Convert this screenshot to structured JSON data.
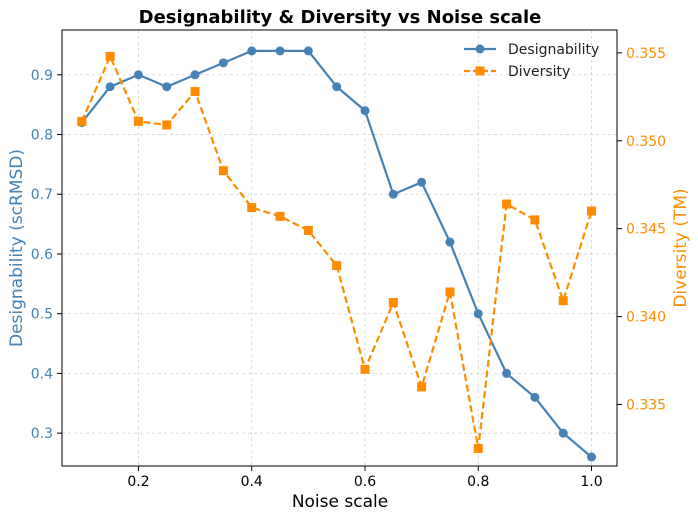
{
  "chart_data": {
    "type": "line",
    "title": "Designability & Diversity vs Noise scale",
    "xlabel": "Noise scale",
    "ylabel_left": "Designability (scRMSD)",
    "ylabel_right": "Diversity (TM)",
    "xlim": [
      0.065,
      1.045
    ],
    "ylim_left": [
      0.245,
      0.975
    ],
    "ylim_right": [
      0.3315,
      0.3563
    ],
    "x_ticks": [
      0.2,
      0.4,
      0.6,
      0.8,
      1.0
    ],
    "x_tick_labels": [
      "0.2",
      "0.4",
      "0.6",
      "0.8",
      "1.0"
    ],
    "y_left_ticks": [
      0.3,
      0.4,
      0.5,
      0.6,
      0.7,
      0.8,
      0.9
    ],
    "y_left_tick_labels": [
      "0.3",
      "0.4",
      "0.5",
      "0.6",
      "0.7",
      "0.8",
      "0.9"
    ],
    "y_right_ticks": [
      0.335,
      0.34,
      0.345,
      0.35,
      0.355
    ],
    "y_right_tick_labels": [
      "0.335",
      "0.340",
      "0.345",
      "0.350",
      "0.355"
    ],
    "grid": true,
    "legend_position": "top-right",
    "x": [
      0.1,
      0.15,
      0.2,
      0.25,
      0.3,
      0.35,
      0.4,
      0.45,
      0.5,
      0.55,
      0.6,
      0.65,
      0.7,
      0.75,
      0.8,
      0.85,
      0.9,
      0.95,
      1.0
    ],
    "series": [
      {
        "name": "Designability",
        "axis": "left",
        "color": "#4682b4",
        "marker": "circle",
        "linestyle": "solid",
        "values": [
          0.82,
          0.88,
          0.9,
          0.88,
          0.9,
          0.92,
          0.94,
          0.94,
          0.94,
          0.88,
          0.84,
          0.7,
          0.72,
          0.62,
          0.5,
          0.4,
          0.36,
          0.3,
          0.26
        ]
      },
      {
        "name": "Diversity",
        "axis": "right",
        "color": "#ff8c00",
        "marker": "square",
        "linestyle": "dashed",
        "values": [
          0.3511,
          0.3548,
          0.3511,
          0.3509,
          0.3528,
          0.3483,
          0.3462,
          0.3457,
          0.3449,
          0.3429,
          0.337,
          0.3408,
          0.336,
          0.3414,
          0.3325,
          0.3464,
          0.3455,
          0.3409,
          0.346
        ]
      }
    ]
  }
}
